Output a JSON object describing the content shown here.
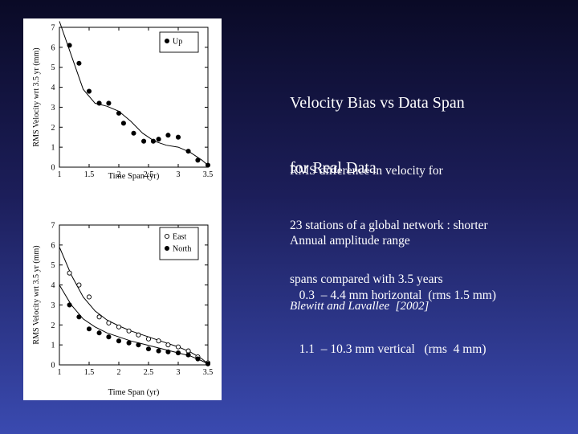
{
  "slide": {
    "title_lines": [
      "Velocity Bias vs Data Span",
      "for Real Data"
    ],
    "rms_lines": [
      "RMS difference in velocity for",
      "23 stations of a global network : shorter",
      "spans compared with 3.5 years"
    ],
    "annual_lines": [
      "Annual amplitude range",
      "   0.3  – 4.4 mm horizontal  (rms 1.5 mm)",
      "   1.1  – 10.3 mm vertical   (rms  4 mm)"
    ],
    "citation": "Blewitt and Lavallee  [2002]"
  },
  "colors": {
    "background_top": "#0a0a26",
    "background_bottom": "#3a4ab0",
    "text": "#ffffff",
    "figure_bg": "#ffffff",
    "ink": "#000000"
  },
  "chart_data": [
    {
      "type": "scatter",
      "xlabel": "Time Span (yr)",
      "ylabel": "RMS Velocity wrt 3.5 yr (mm)",
      "xlim": [
        1,
        3.5
      ],
      "ylim": [
        0,
        7
      ],
      "x_ticks": [
        "1",
        "1.5",
        "2",
        "2.5",
        "3",
        "3.5"
      ],
      "y_ticks": [
        "0",
        "1",
        "2",
        "3",
        "4",
        "5",
        "6",
        "7"
      ],
      "grid": false,
      "legend_position": "top-right",
      "series": [
        {
          "name": "Up",
          "marker": "filled",
          "x": [
            1.17,
            1.33,
            1.5,
            1.67,
            1.83,
            2.0,
            2.08,
            2.25,
            2.42,
            2.58,
            2.67,
            2.83,
            3.0,
            3.17,
            3.33,
            3.5
          ],
          "y": [
            6.1,
            5.2,
            3.8,
            3.2,
            3.2,
            2.7,
            2.2,
            1.7,
            1.3,
            1.3,
            1.4,
            1.6,
            1.5,
            0.8,
            0.35,
            0.1
          ]
        }
      ],
      "fit_lines": [
        {
          "x": [
            1.0,
            1.2,
            1.4,
            1.6,
            1.8,
            2.0,
            2.2,
            2.4,
            2.6,
            2.8,
            3.0,
            3.2,
            3.4,
            3.5
          ],
          "y": [
            7.4,
            5.6,
            3.9,
            3.2,
            3.05,
            2.8,
            2.3,
            1.7,
            1.3,
            1.1,
            1.0,
            0.75,
            0.35,
            0.1
          ]
        }
      ]
    },
    {
      "type": "scatter",
      "xlabel": "Time Span (yr)",
      "ylabel": "RMS Velocity wrt 3.5 yr (mm)",
      "xlim": [
        1,
        3.5
      ],
      "ylim": [
        0,
        7
      ],
      "x_ticks": [
        "1",
        "1.5",
        "2",
        "2.5",
        "3",
        "3.5"
      ],
      "y_ticks": [
        "0",
        "1",
        "2",
        "3",
        "4",
        "5",
        "6",
        "7"
      ],
      "grid": false,
      "legend_position": "top-right",
      "series": [
        {
          "name": "East",
          "marker": "open",
          "x": [
            1.17,
            1.33,
            1.5,
            1.67,
            1.83,
            2.0,
            2.17,
            2.33,
            2.5,
            2.67,
            2.83,
            3.0,
            3.17,
            3.33,
            3.5
          ],
          "y": [
            4.6,
            4.0,
            3.4,
            2.4,
            2.1,
            1.9,
            1.7,
            1.5,
            1.3,
            1.2,
            1.0,
            0.9,
            0.7,
            0.4,
            0.1
          ]
        },
        {
          "name": "North",
          "marker": "filled",
          "x": [
            1.17,
            1.33,
            1.5,
            1.67,
            1.83,
            2.0,
            2.17,
            2.33,
            2.5,
            2.67,
            2.83,
            3.0,
            3.17,
            3.33,
            3.5
          ],
          "y": [
            3.0,
            2.4,
            1.8,
            1.6,
            1.4,
            1.2,
            1.1,
            1.0,
            0.8,
            0.7,
            0.65,
            0.6,
            0.5,
            0.3,
            0.05
          ]
        }
      ],
      "fit_lines": [
        {
          "x": [
            1.0,
            1.2,
            1.4,
            1.6,
            1.8,
            2.0,
            2.2,
            2.4,
            2.6,
            2.8,
            3.0,
            3.2,
            3.4,
            3.5
          ],
          "y": [
            5.9,
            4.5,
            3.4,
            2.7,
            2.25,
            1.95,
            1.7,
            1.5,
            1.3,
            1.1,
            0.9,
            0.65,
            0.3,
            0.05
          ]
        },
        {
          "x": [
            1.0,
            1.2,
            1.4,
            1.6,
            1.8,
            2.0,
            2.2,
            2.4,
            2.6,
            2.8,
            3.0,
            3.2,
            3.4,
            3.5
          ],
          "y": [
            4.0,
            3.0,
            2.3,
            1.9,
            1.6,
            1.4,
            1.2,
            1.05,
            0.9,
            0.75,
            0.6,
            0.45,
            0.2,
            0.05
          ]
        }
      ]
    }
  ]
}
